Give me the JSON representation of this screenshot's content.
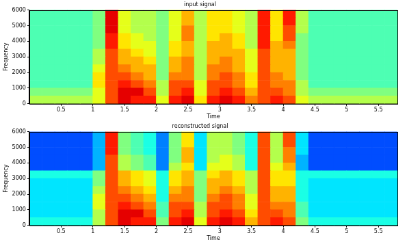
{
  "chart_data": [
    {
      "type": "heatmap",
      "title": "input signal",
      "x_label": "Time",
      "y_label": "Frequency",
      "xlim": [
        0,
        5.8
      ],
      "ylim": [
        0,
        6000
      ],
      "xticks": [
        0.5,
        1,
        1.5,
        2,
        2.5,
        3,
        3.5,
        4,
        4.5,
        5,
        5.5
      ],
      "yticks": [
        0,
        1000,
        2000,
        3000,
        4000,
        5000,
        6000
      ],
      "grid": false,
      "time_bins": [
        0,
        0.2,
        0.4,
        0.6,
        0.8,
        1,
        1.2,
        1.4,
        1.6,
        1.8,
        2,
        2.2,
        2.4,
        2.6,
        2.8,
        3,
        3.2,
        3.4,
        3.6,
        3.8,
        4,
        4.2,
        4.4,
        4.6,
        4.8,
        5,
        5.2,
        5.4,
        5.6,
        5.8
      ],
      "frequency_bins": [
        0,
        500,
        1000,
        1500,
        2000,
        2500,
        3000,
        3500,
        4000,
        4500,
        5000,
        5500,
        6000
      ],
      "color_range": [
        0,
        10
      ],
      "cells": [
        [
          5.5,
          5.5,
          5.5,
          5.5,
          5.5,
          6,
          8,
          9,
          8.5,
          8.5,
          6,
          8.5,
          9,
          6.5,
          8.5,
          9,
          8.5,
          7.5,
          8,
          8.5,
          8,
          6,
          5.5,
          5.5,
          5.5,
          5.5,
          5.5,
          5.5,
          5.5
        ],
        [
          5,
          5,
          5,
          5,
          5,
          6,
          8,
          9,
          9,
          8,
          5.5,
          8,
          8.5,
          6,
          8,
          8.5,
          8,
          7,
          8,
          8,
          7.5,
          5.5,
          5,
          5,
          5,
          5,
          5,
          5,
          5
        ],
        [
          4.5,
          4.5,
          4.5,
          4.5,
          4.5,
          6.5,
          8,
          8.5,
          8,
          7.5,
          5.5,
          8,
          8,
          6,
          8,
          8,
          7.5,
          6.5,
          8,
          7.5,
          7.5,
          5.5,
          4.5,
          4.5,
          4.5,
          4.5,
          4.5,
          4.5,
          4.5
        ],
        [
          4.5,
          4.5,
          4.5,
          4.5,
          4.5,
          6.5,
          8,
          8,
          7.5,
          7,
          5,
          7.5,
          7.5,
          5.5,
          7.5,
          8,
          7.5,
          6.5,
          8,
          7.5,
          7,
          5,
          4.5,
          4.5,
          4.5,
          4.5,
          4.5,
          4.5,
          4.5
        ],
        [
          4.5,
          4.5,
          4.5,
          4.5,
          4.5,
          6,
          8,
          7.5,
          7,
          7,
          5,
          7,
          7.5,
          5.5,
          7.5,
          7.5,
          7,
          6,
          8,
          7,
          7,
          5,
          4.5,
          4.5,
          4.5,
          4.5,
          4.5,
          4.5,
          4.5
        ],
        [
          4.5,
          4.5,
          4.5,
          4.5,
          4.5,
          5.5,
          8,
          7,
          7,
          6.5,
          5,
          7,
          7.5,
          5.5,
          7,
          7.5,
          7,
          6,
          8,
          7,
          7,
          5,
          4.5,
          4.5,
          4.5,
          4.5,
          4.5,
          4.5,
          4.5
        ],
        [
          4.5,
          4.5,
          4.5,
          4.5,
          4.5,
          5.5,
          8,
          7,
          6.5,
          6,
          5,
          6.5,
          7,
          5.5,
          7,
          7,
          7,
          6,
          8,
          7,
          7,
          5,
          4.5,
          4.5,
          4.5,
          4.5,
          4.5,
          4.5,
          4.5
        ],
        [
          4.5,
          4.5,
          4.5,
          4.5,
          4.5,
          5,
          8.5,
          6.5,
          6,
          6,
          5,
          6.5,
          7,
          5.5,
          7,
          7,
          6.5,
          5.5,
          8.5,
          7,
          7.5,
          5,
          4.5,
          4.5,
          4.5,
          4.5,
          4.5,
          4.5,
          4.5
        ],
        [
          4.5,
          4.5,
          4.5,
          4.5,
          4.5,
          5,
          8.5,
          6.5,
          6,
          5.5,
          5,
          6,
          7.5,
          5.5,
          6.5,
          7,
          6.5,
          5.5,
          8.5,
          6.5,
          8,
          5,
          4.5,
          4.5,
          4.5,
          4.5,
          4.5,
          4.5,
          4.5
        ],
        [
          4.5,
          4.5,
          4.5,
          4.5,
          4.5,
          5,
          9,
          6,
          5.5,
          5.5,
          5,
          6,
          7.5,
          5.5,
          6.5,
          6.5,
          6,
          5.5,
          8.5,
          6.5,
          8,
          5.5,
          4.5,
          4.5,
          4.5,
          4.5,
          4.5,
          4.5,
          4.5
        ],
        [
          4.5,
          4.5,
          4.5,
          4.5,
          4.5,
          5,
          9,
          6,
          5.5,
          5.5,
          5,
          6,
          7,
          5.5,
          6.5,
          6.5,
          6,
          5.5,
          8.5,
          6.5,
          8.5,
          5.5,
          4.5,
          4.5,
          4.5,
          4.5,
          4.5,
          4.5,
          4.5
        ],
        [
          4.5,
          4.5,
          4.5,
          4.5,
          4.5,
          5,
          9,
          6,
          5.5,
          5.5,
          5,
          6,
          7,
          5.5,
          6.5,
          6.5,
          6,
          5.5,
          8.5,
          6.5,
          8.5,
          5.5,
          4.5,
          4.5,
          4.5,
          4.5,
          4.5,
          4.5,
          4.5
        ]
      ]
    },
    {
      "type": "heatmap",
      "title": "reconstructed signal",
      "x_label": "Time",
      "y_label": "Frequency",
      "xlim": [
        0,
        5.8
      ],
      "ylim": [
        0,
        6000
      ],
      "xticks": [
        0.5,
        1,
        1.5,
        2,
        2.5,
        3,
        3.5,
        4,
        4.5,
        5,
        5.5
      ],
      "yticks": [
        0,
        1000,
        2000,
        3000,
        4000,
        5000,
        6000
      ],
      "grid": false,
      "time_bins": [
        0,
        0.2,
        0.4,
        0.6,
        0.8,
        1,
        1.2,
        1.4,
        1.6,
        1.8,
        2,
        2.2,
        2.4,
        2.6,
        2.8,
        3,
        3.2,
        3.4,
        3.6,
        3.8,
        4,
        4.2,
        4.4,
        4.6,
        4.8,
        5,
        5.2,
        5.4,
        5.6,
        5.8
      ],
      "frequency_bins": [
        0,
        500,
        1000,
        1500,
        2000,
        2500,
        3000,
        3500,
        4000,
        4500,
        5000,
        5500,
        6000
      ],
      "color_range": [
        0,
        10
      ],
      "cells": [
        [
          4,
          4,
          4,
          4,
          4,
          5.5,
          8,
          9,
          8.5,
          8.5,
          5,
          8.5,
          9,
          6,
          8.5,
          9,
          8.5,
          7,
          8,
          8.5,
          8,
          5,
          4,
          4,
          4,
          4,
          4,
          4,
          4
        ],
        [
          3.5,
          3.5,
          3.5,
          3.5,
          3.5,
          5.5,
          8,
          9,
          9,
          8,
          4.5,
          8,
          8.5,
          5.5,
          8,
          8.5,
          8,
          6.5,
          8,
          8,
          7.5,
          4.5,
          3.5,
          3.5,
          3.5,
          3.5,
          3.5,
          3.5,
          3.5
        ],
        [
          3.5,
          3.5,
          3.5,
          3.5,
          3.5,
          6,
          8,
          8.5,
          8,
          7.5,
          4.5,
          8,
          8,
          5.5,
          8,
          8,
          7.5,
          6,
          8,
          7.5,
          7.5,
          4.5,
          3.5,
          3.5,
          3.5,
          3.5,
          3.5,
          3.5,
          3.5
        ],
        [
          3.5,
          3.5,
          3.5,
          3.5,
          3.5,
          6,
          8,
          8,
          7.5,
          7,
          4,
          7.5,
          7.5,
          5,
          7.5,
          8,
          7.5,
          6,
          8,
          7,
          7,
          4,
          3.5,
          3.5,
          3.5,
          3.5,
          3.5,
          3.5,
          3.5
        ],
        [
          3.5,
          3.5,
          3.5,
          3.5,
          3.5,
          5.5,
          8,
          7.5,
          7,
          6.5,
          4,
          7,
          7.5,
          5,
          7,
          7.5,
          7,
          5.5,
          8,
          7,
          7,
          4,
          3.5,
          3.5,
          3.5,
          3.5,
          3.5,
          3.5,
          3.5
        ],
        [
          3.5,
          3.5,
          3.5,
          3.5,
          3.5,
          5,
          8,
          7,
          6.5,
          6,
          4,
          6.5,
          7,
          5,
          7,
          7,
          6.5,
          5.5,
          8,
          6.5,
          6.5,
          4,
          3.5,
          3.5,
          3.5,
          3.5,
          3.5,
          3.5,
          3.5
        ],
        [
          4,
          4,
          4,
          4,
          4,
          5,
          8,
          7,
          6.5,
          6,
          4,
          6.5,
          7,
          5,
          6.5,
          7,
          6.5,
          5.5,
          8,
          6.5,
          6.5,
          4,
          4,
          4,
          4,
          4,
          4,
          4,
          4
        ],
        [
          2,
          2,
          2,
          2,
          2,
          3,
          8,
          5.5,
          5,
          4.5,
          2.5,
          5.5,
          6.5,
          3.5,
          6,
          6,
          5.5,
          4,
          8,
          6,
          7,
          3,
          2,
          2,
          2,
          2,
          2,
          2,
          2
        ],
        [
          2,
          2,
          2,
          2,
          2,
          3,
          8,
          5.5,
          5,
          4.5,
          2.5,
          5,
          7,
          3.5,
          5.5,
          6,
          5.5,
          4,
          8,
          5.5,
          7.5,
          3,
          2,
          2,
          2,
          2,
          2,
          2,
          2
        ],
        [
          2,
          2,
          2,
          2,
          2,
          3,
          8.5,
          5,
          4.5,
          4,
          2.5,
          5,
          7,
          3.5,
          5.5,
          5.5,
          5,
          4,
          8,
          5.5,
          7.5,
          3.5,
          2,
          2,
          2,
          2,
          2,
          2,
          2
        ],
        [
          2,
          2,
          2,
          2,
          2,
          3,
          8.5,
          5,
          4.5,
          4,
          2.5,
          5,
          6.5,
          3.5,
          5.5,
          5.5,
          5,
          4,
          8,
          5.5,
          8,
          3.5,
          2,
          2,
          2,
          2,
          2,
          2,
          2
        ],
        [
          2,
          2,
          2,
          2,
          2,
          3,
          8.5,
          5,
          4.5,
          4,
          2.5,
          5,
          6.5,
          3.5,
          5.5,
          5.5,
          5,
          4,
          8,
          5.5,
          8,
          3.5,
          2,
          2,
          2,
          2,
          2,
          2,
          2
        ]
      ]
    }
  ]
}
